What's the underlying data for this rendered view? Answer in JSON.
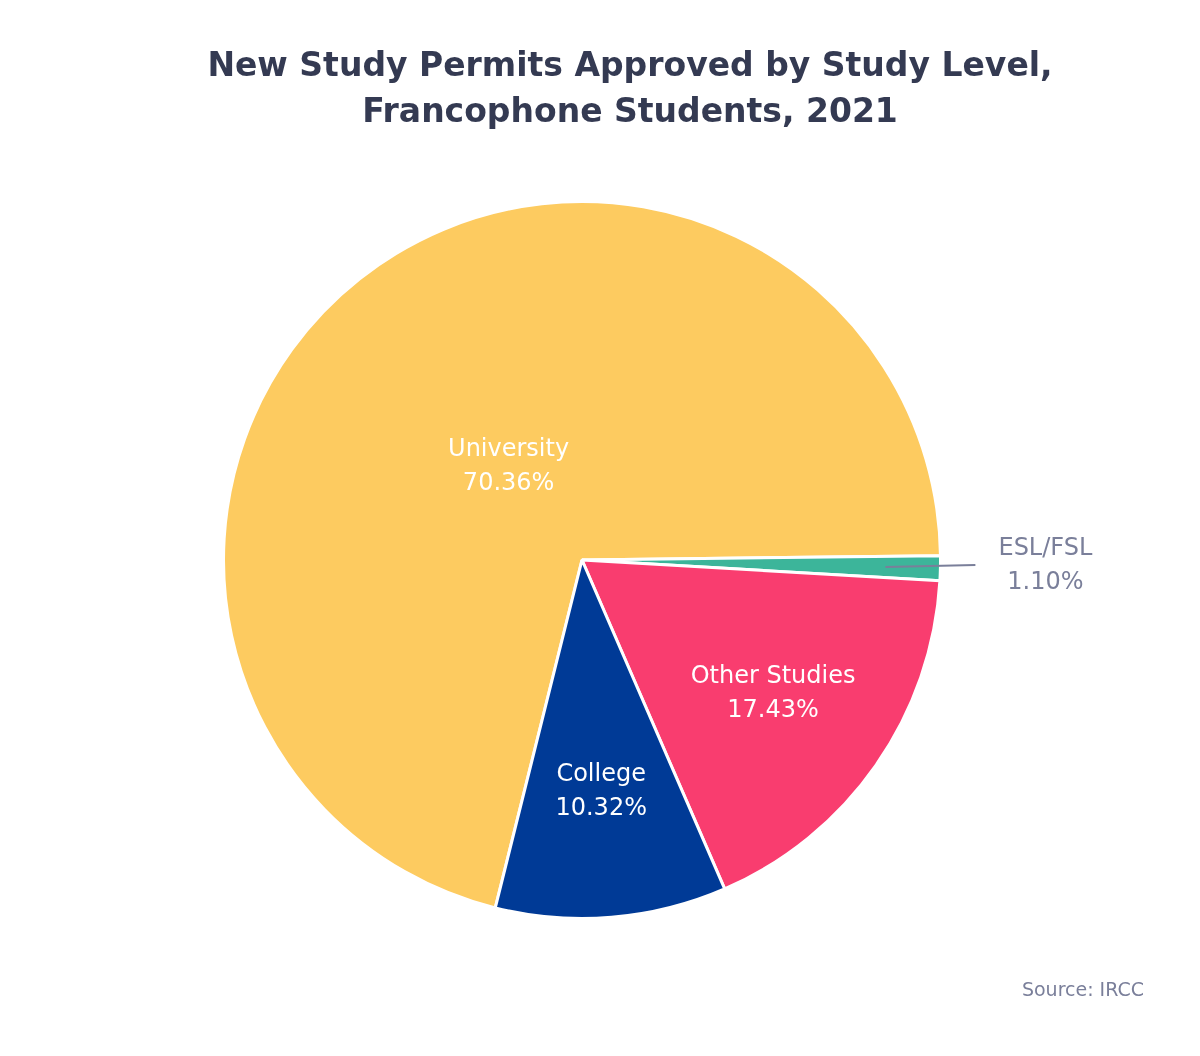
{
  "chart_data": {
    "type": "pie",
    "title": "New Study Permits Approved by Study Level, Francophone Students, 2021",
    "categories": [
      "University",
      "ESL/FSL",
      "Other Studies",
      "College"
    ],
    "values": [
      70.36,
      1.1,
      17.43,
      10.32
    ],
    "value_labels": [
      "70.36%",
      "1.10%",
      "17.43%",
      "10.32%"
    ],
    "colors": [
      "#fdcb60",
      "#3cb59a",
      "#f93d6f",
      "#003a96"
    ],
    "annotations": [
      "Source: IRCC"
    ]
  }
}
